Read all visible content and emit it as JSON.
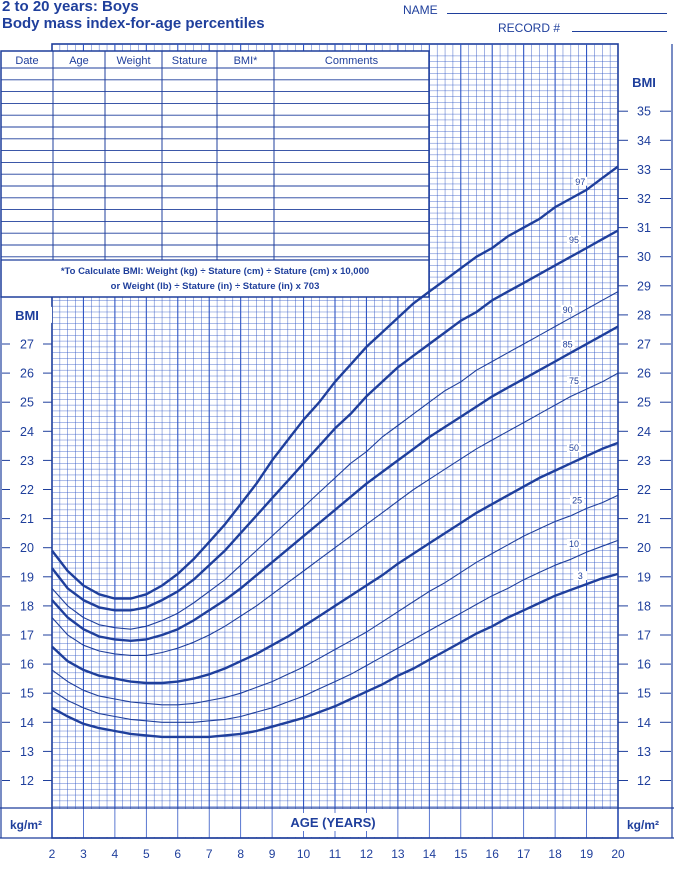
{
  "header": {
    "title_line1": "2 to 20 years: Boys",
    "title_line2": "Body mass index-for-age percentiles",
    "name_label": "NAME",
    "record_label": "RECORD #"
  },
  "record_table": {
    "columns": [
      "Date",
      "Age",
      "Weight",
      "Stature",
      "BMI*",
      "Comments"
    ],
    "formula_line1": "*To Calculate BMI: Weight (kg) ÷ Stature (cm) ÷ Stature (cm) x 10,000",
    "formula_line2": "or Weight (lb) ÷ Stature (in) ÷ Stature (in) x 703"
  },
  "colors": {
    "ink": "#1f3f9c",
    "grid": "#2f55c4"
  },
  "chart_data": {
    "type": "line",
    "xlabel": "AGE (YEARS)",
    "ylabel": "BMI",
    "unit_label": "kg/m²",
    "xlim": [
      2,
      20
    ],
    "ylim": [
      11,
      37
    ],
    "x_ticks": [
      2,
      3,
      4,
      5,
      6,
      7,
      8,
      9,
      10,
      11,
      12,
      13,
      14,
      15,
      16,
      17,
      18,
      19,
      20
    ],
    "y_ticks_left": [
      12,
      13,
      14,
      15,
      16,
      17,
      18,
      19,
      20,
      21,
      22,
      23,
      24,
      25,
      26,
      27
    ],
    "y_ticks_right": [
      12,
      13,
      14,
      15,
      16,
      17,
      18,
      19,
      20,
      21,
      22,
      23,
      24,
      25,
      26,
      27,
      28,
      29,
      30,
      31,
      32,
      33,
      34,
      35
    ],
    "grid": true,
    "x": [
      2,
      2.5,
      3,
      3.5,
      4,
      4.5,
      5,
      5.5,
      6,
      6.5,
      7,
      7.5,
      8,
      8.5,
      9,
      9.5,
      10,
      10.5,
      11,
      11.5,
      12,
      12.5,
      13,
      13.5,
      14,
      14.5,
      15,
      15.5,
      16,
      16.5,
      17,
      17.5,
      18,
      18.5,
      19,
      19.5,
      20
    ],
    "series": [
      {
        "name": "97",
        "bold": true,
        "values": [
          19.9,
          19.2,
          18.7,
          18.4,
          18.25,
          18.25,
          18.4,
          18.7,
          19.1,
          19.6,
          20.2,
          20.8,
          21.5,
          22.2,
          23.0,
          23.7,
          24.4,
          25.0,
          25.7,
          26.3,
          26.9,
          27.4,
          27.9,
          28.4,
          28.8,
          29.2,
          29.6,
          30.0,
          30.3,
          30.7,
          31.0,
          31.3,
          31.7,
          32.0,
          32.3,
          32.7,
          33.1
        ]
      },
      {
        "name": "95",
        "bold": true,
        "values": [
          19.3,
          18.6,
          18.2,
          17.95,
          17.85,
          17.85,
          17.95,
          18.2,
          18.5,
          18.9,
          19.4,
          19.9,
          20.5,
          21.1,
          21.7,
          22.3,
          22.9,
          23.5,
          24.1,
          24.6,
          25.2,
          25.7,
          26.2,
          26.6,
          27.0,
          27.4,
          27.8,
          28.1,
          28.5,
          28.8,
          29.1,
          29.4,
          29.7,
          30.0,
          30.3,
          30.6,
          30.9
        ]
      },
      {
        "name": "90",
        "bold": false,
        "values": [
          18.6,
          18.0,
          17.6,
          17.35,
          17.25,
          17.2,
          17.3,
          17.5,
          17.75,
          18.1,
          18.5,
          18.9,
          19.4,
          19.9,
          20.4,
          20.9,
          21.4,
          21.9,
          22.4,
          22.9,
          23.3,
          23.8,
          24.2,
          24.6,
          25.0,
          25.4,
          25.7,
          26.1,
          26.4,
          26.7,
          27.0,
          27.3,
          27.6,
          27.9,
          28.2,
          28.5,
          28.8
        ]
      },
      {
        "name": "85",
        "bold": true,
        "values": [
          18.2,
          17.6,
          17.2,
          16.95,
          16.85,
          16.8,
          16.85,
          17.0,
          17.2,
          17.5,
          17.85,
          18.2,
          18.6,
          19.05,
          19.5,
          19.95,
          20.4,
          20.85,
          21.3,
          21.75,
          22.2,
          22.6,
          23.0,
          23.4,
          23.8,
          24.15,
          24.5,
          24.85,
          25.2,
          25.5,
          25.8,
          26.1,
          26.4,
          26.7,
          27.0,
          27.3,
          27.6
        ]
      },
      {
        "name": "75",
        "bold": false,
        "values": [
          17.6,
          17.0,
          16.65,
          16.45,
          16.35,
          16.3,
          16.3,
          16.4,
          16.55,
          16.75,
          17.0,
          17.3,
          17.65,
          18.0,
          18.4,
          18.8,
          19.2,
          19.6,
          20.0,
          20.4,
          20.8,
          21.2,
          21.6,
          22.0,
          22.35,
          22.7,
          23.05,
          23.4,
          23.7,
          24.0,
          24.3,
          24.6,
          24.9,
          25.2,
          25.45,
          25.7,
          26.0
        ]
      },
      {
        "name": "50",
        "bold": true,
        "values": [
          16.6,
          16.1,
          15.8,
          15.6,
          15.5,
          15.4,
          15.35,
          15.35,
          15.4,
          15.5,
          15.65,
          15.85,
          16.1,
          16.35,
          16.65,
          16.95,
          17.3,
          17.65,
          18.0,
          18.35,
          18.7,
          19.05,
          19.45,
          19.8,
          20.15,
          20.5,
          20.85,
          21.2,
          21.5,
          21.8,
          22.1,
          22.4,
          22.65,
          22.9,
          23.15,
          23.4,
          23.6
        ]
      },
      {
        "name": "25",
        "bold": false,
        "values": [
          15.8,
          15.4,
          15.1,
          14.9,
          14.8,
          14.7,
          14.65,
          14.6,
          14.6,
          14.65,
          14.75,
          14.85,
          15.0,
          15.2,
          15.4,
          15.65,
          15.9,
          16.2,
          16.5,
          16.8,
          17.1,
          17.45,
          17.8,
          18.15,
          18.5,
          18.8,
          19.15,
          19.5,
          19.8,
          20.1,
          20.4,
          20.65,
          20.9,
          21.1,
          21.35,
          21.55,
          21.8
        ]
      },
      {
        "name": "10",
        "bold": false,
        "values": [
          15.1,
          14.75,
          14.5,
          14.3,
          14.2,
          14.1,
          14.05,
          14.0,
          14.0,
          14.0,
          14.05,
          14.1,
          14.2,
          14.35,
          14.5,
          14.7,
          14.9,
          15.15,
          15.4,
          15.65,
          15.95,
          16.25,
          16.55,
          16.85,
          17.15,
          17.45,
          17.75,
          18.05,
          18.35,
          18.6,
          18.9,
          19.15,
          19.4,
          19.6,
          19.85,
          20.05,
          20.25
        ]
      },
      {
        "name": "3",
        "bold": true,
        "values": [
          14.5,
          14.2,
          13.95,
          13.8,
          13.7,
          13.6,
          13.55,
          13.5,
          13.5,
          13.5,
          13.5,
          13.55,
          13.6,
          13.7,
          13.85,
          14.0,
          14.15,
          14.35,
          14.55,
          14.8,
          15.05,
          15.3,
          15.6,
          15.85,
          16.15,
          16.45,
          16.75,
          17.05,
          17.3,
          17.6,
          17.85,
          18.1,
          18.35,
          18.55,
          18.75,
          18.95,
          19.1
        ]
      }
    ]
  }
}
